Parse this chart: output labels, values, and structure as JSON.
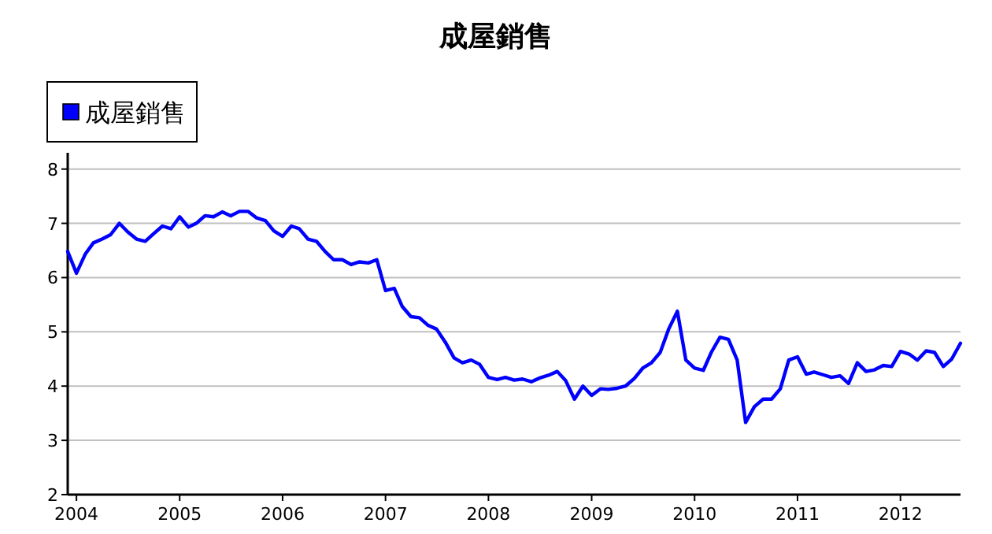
{
  "chart_data": {
    "type": "line",
    "title": "成屋銷售",
    "x": [
      "2003-12",
      "2004-01",
      "2004-02",
      "2004-03",
      "2004-04",
      "2004-05",
      "2004-06",
      "2004-07",
      "2004-08",
      "2004-09",
      "2004-10",
      "2004-11",
      "2004-12",
      "2005-01",
      "2005-02",
      "2005-03",
      "2005-04",
      "2005-05",
      "2005-06",
      "2005-07",
      "2005-08",
      "2005-09",
      "2005-10",
      "2005-11",
      "2005-12",
      "2006-01",
      "2006-02",
      "2006-03",
      "2006-04",
      "2006-05",
      "2006-06",
      "2006-07",
      "2006-08",
      "2006-09",
      "2006-10",
      "2006-11",
      "2006-12",
      "2007-01",
      "2007-02",
      "2007-03",
      "2007-04",
      "2007-05",
      "2007-06",
      "2007-07",
      "2007-08",
      "2007-09",
      "2007-10",
      "2007-11",
      "2007-12",
      "2008-01",
      "2008-02",
      "2008-03",
      "2008-04",
      "2008-05",
      "2008-06",
      "2008-07",
      "2008-08",
      "2008-09",
      "2008-10",
      "2008-11",
      "2008-12",
      "2009-01",
      "2009-02",
      "2009-03",
      "2009-04",
      "2009-05",
      "2009-06",
      "2009-07",
      "2009-08",
      "2009-09",
      "2009-10",
      "2009-11",
      "2009-12",
      "2010-01",
      "2010-02",
      "2010-03",
      "2010-04",
      "2010-05",
      "2010-06",
      "2010-07",
      "2010-08",
      "2010-09",
      "2010-10",
      "2010-11",
      "2010-12",
      "2011-01",
      "2011-02",
      "2011-03",
      "2011-04",
      "2011-05",
      "2011-06",
      "2011-07",
      "2011-08",
      "2011-09",
      "2011-10",
      "2011-11",
      "2011-12",
      "2012-01",
      "2012-02",
      "2012-03",
      "2012-04",
      "2012-05",
      "2012-06",
      "2012-07",
      "2012-08"
    ],
    "series": [
      {
        "name": "成屋銷售",
        "color": "#0000ff",
        "values": [
          6.48,
          6.08,
          6.43,
          6.64,
          6.71,
          6.79,
          7.0,
          6.84,
          6.71,
          6.67,
          6.81,
          6.95,
          6.9,
          7.12,
          6.93,
          7.0,
          7.14,
          7.12,
          7.21,
          7.14,
          7.22,
          7.22,
          7.1,
          7.05,
          6.86,
          6.76,
          6.95,
          6.9,
          6.71,
          6.67,
          6.48,
          6.33,
          6.33,
          6.24,
          6.29,
          6.27,
          6.33,
          5.76,
          5.8,
          5.47,
          5.28,
          5.26,
          5.12,
          5.05,
          4.81,
          4.52,
          4.43,
          4.48,
          4.4,
          4.16,
          4.12,
          4.16,
          4.11,
          4.13,
          4.08,
          4.15,
          4.2,
          4.27,
          4.1,
          3.76,
          4.0,
          3.83,
          3.95,
          3.94,
          3.96,
          4.0,
          4.14,
          4.33,
          4.43,
          4.62,
          5.05,
          5.38,
          4.48,
          4.33,
          4.29,
          4.62,
          4.9,
          4.86,
          4.48,
          3.33,
          3.62,
          3.76,
          3.76,
          3.95,
          4.48,
          4.54,
          4.22,
          4.26,
          4.21,
          4.16,
          4.19,
          4.05,
          4.43,
          4.27,
          4.3,
          4.38,
          4.36,
          4.64,
          4.59,
          4.48,
          4.65,
          4.62,
          4.36,
          4.5,
          4.79
        ]
      }
    ],
    "xlim": [
      "2003-12",
      "2012-08"
    ],
    "xticks": [
      "2004",
      "2005",
      "2006",
      "2007",
      "2008",
      "2009",
      "2010",
      "2011",
      "2012"
    ],
    "ylim": [
      2,
      8.3
    ],
    "yticks": [
      2,
      3,
      4,
      5,
      6,
      7,
      8
    ],
    "grid": "y",
    "legend": "top left",
    "marker": "none",
    "line_style": "solid"
  }
}
